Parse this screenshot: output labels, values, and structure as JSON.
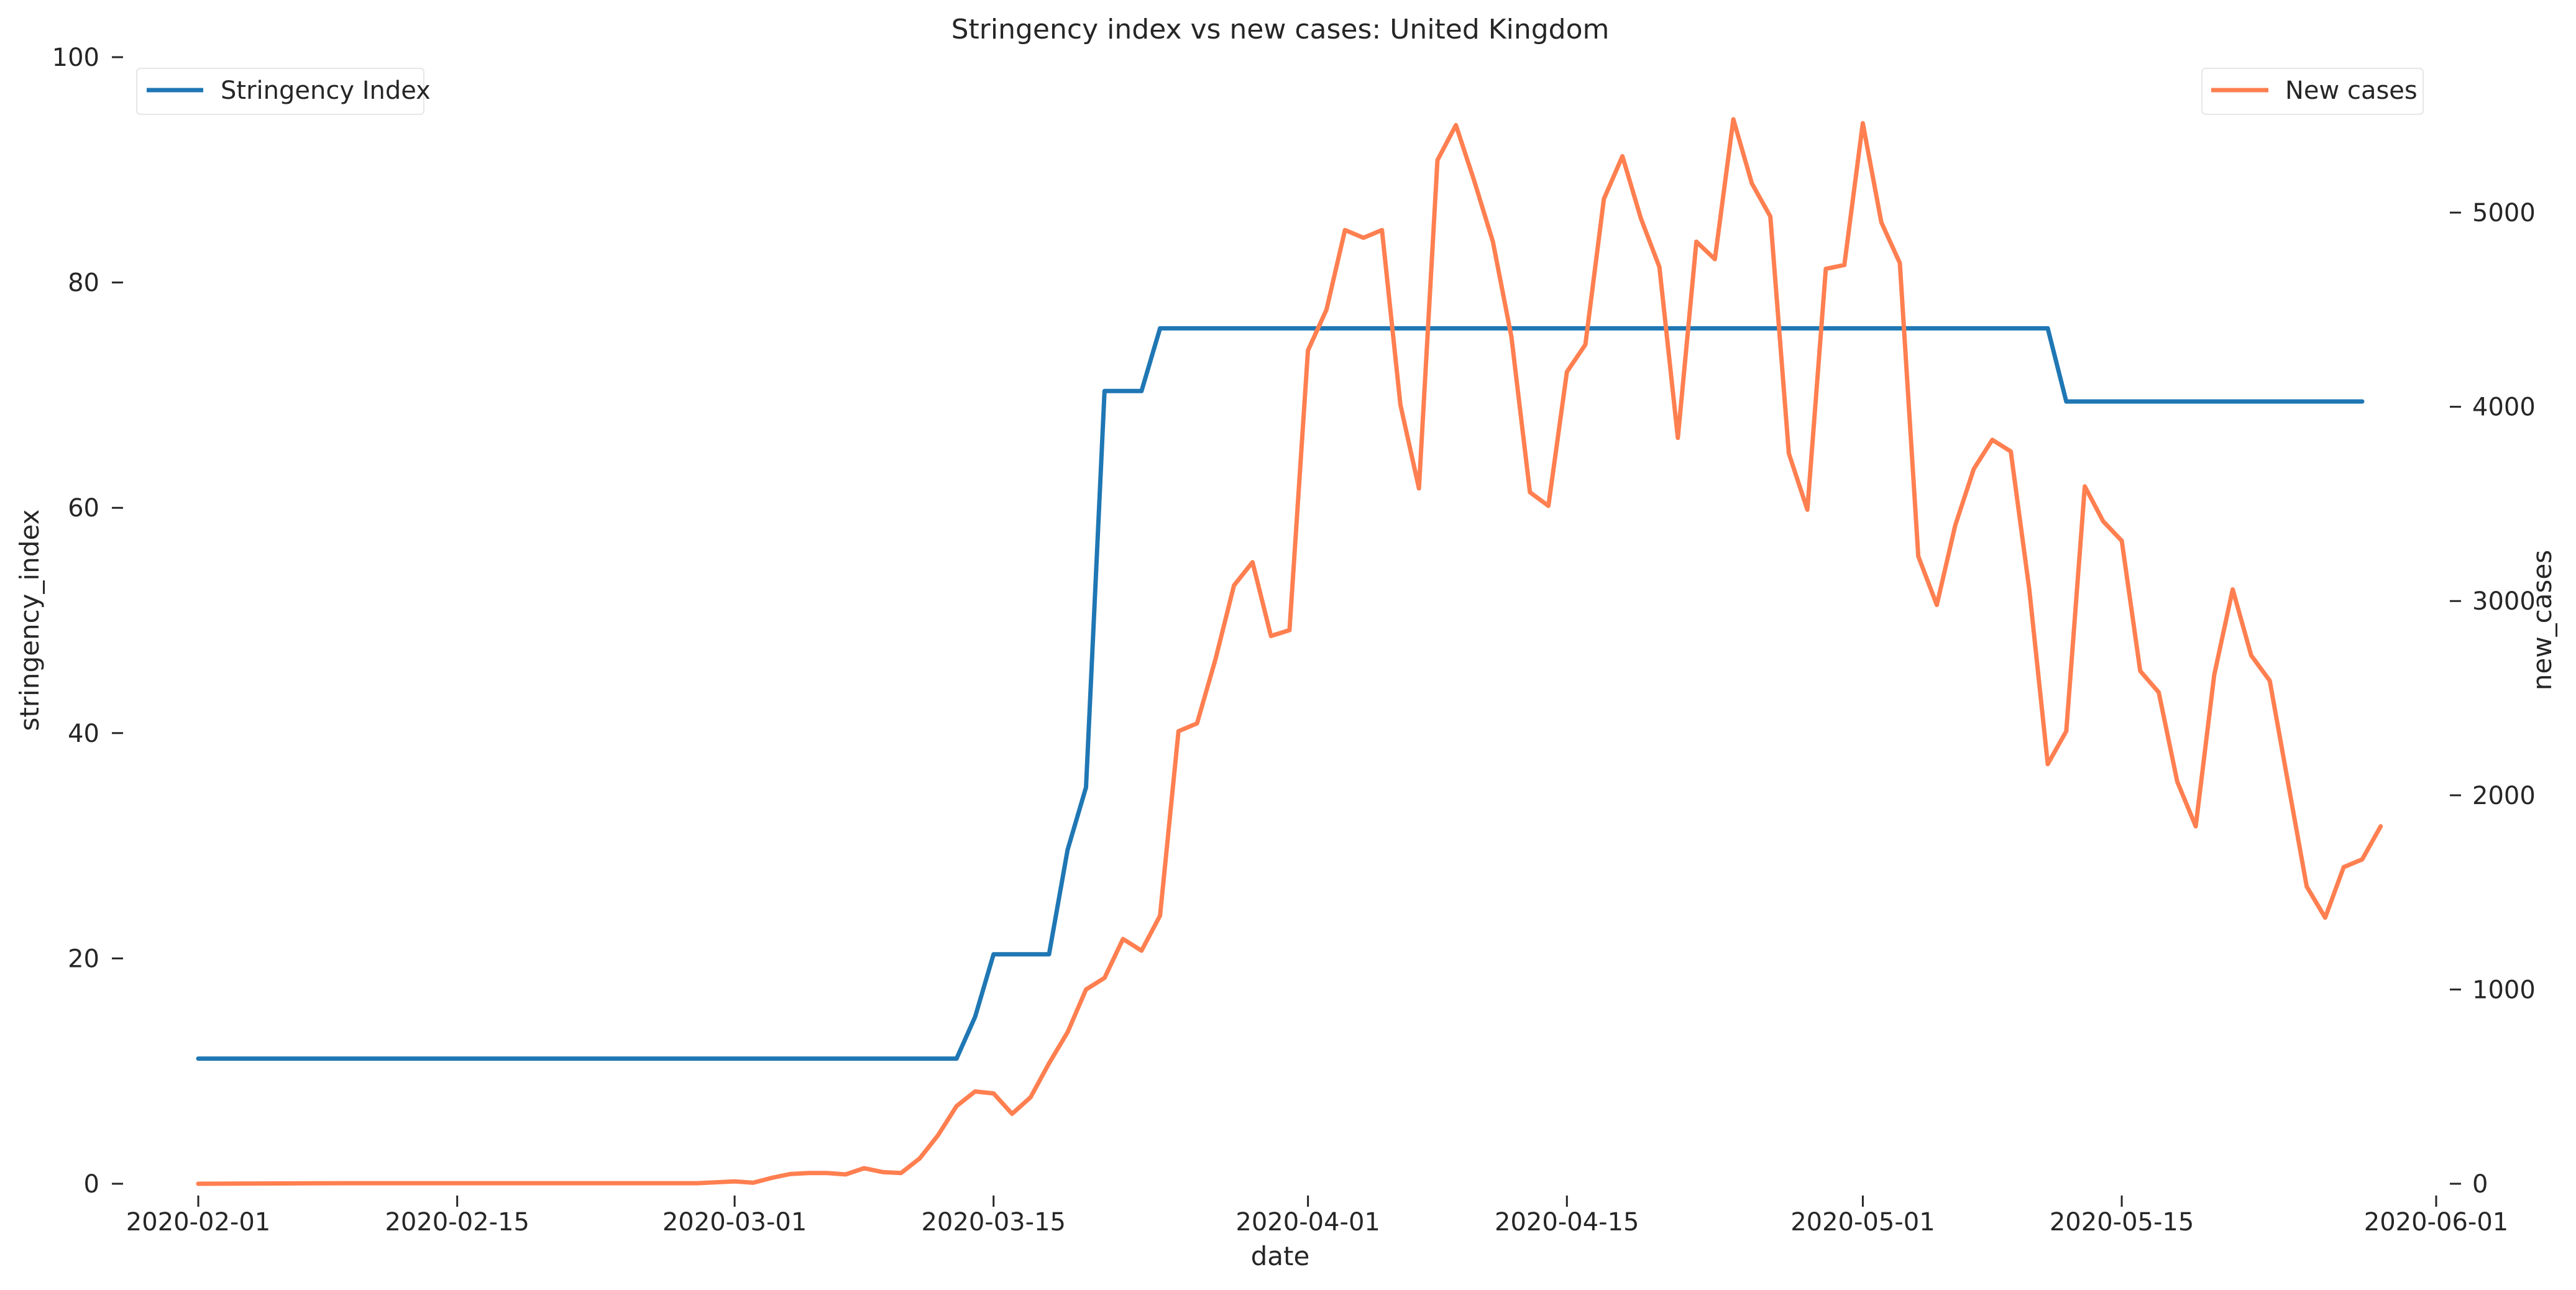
{
  "chart_data": {
    "type": "line",
    "title": "Stringency index vs new cases:  United Kingdom",
    "xlabel": "date",
    "ylabel_left": "stringency_index",
    "ylabel_right": "new_cases",
    "xlim": [
      "2020-01-28",
      "2020-06-01"
    ],
    "ylim_left": [
      0,
      100
    ],
    "ylim_right": [
      0,
      5800
    ],
    "x_ticks": [
      "2020-02-01",
      "2020-02-15",
      "2020-03-01",
      "2020-03-15",
      "2020-04-01",
      "2020-04-15",
      "2020-05-01",
      "2020-05-15",
      "2020-06-01"
    ],
    "y_ticks_left": [
      0,
      20,
      40,
      60,
      80,
      100
    ],
    "y_ticks_right": [
      0,
      1000,
      2000,
      3000,
      4000,
      5000
    ],
    "grid": false,
    "series": [
      {
        "name": "Stringency Index",
        "axis": "left",
        "color": "#1f77b4",
        "legend_position": "upper-left",
        "points": [
          [
            "2020-02-01",
            11.11
          ],
          [
            "2020-03-13",
            11.11
          ],
          [
            "2020-03-14",
            14.81
          ],
          [
            "2020-03-15",
            20.37
          ],
          [
            "2020-03-18",
            20.37
          ],
          [
            "2020-03-19",
            29.63
          ],
          [
            "2020-03-20",
            35.19
          ],
          [
            "2020-03-21",
            70.37
          ],
          [
            "2020-03-23",
            70.37
          ],
          [
            "2020-03-24",
            75.93
          ],
          [
            "2020-05-11",
            75.93
          ],
          [
            "2020-05-12",
            69.44
          ],
          [
            "2020-05-28",
            69.44
          ]
        ]
      },
      {
        "name": "New cases",
        "axis": "right",
        "color": "#ff7f50",
        "legend_position": "upper-right",
        "points": [
          [
            "2020-02-01",
            0
          ],
          [
            "2020-02-09",
            3
          ],
          [
            "2020-02-28",
            3
          ],
          [
            "2020-03-01",
            12
          ],
          [
            "2020-03-02",
            5
          ],
          [
            "2020-03-03",
            30
          ],
          [
            "2020-03-04",
            50
          ],
          [
            "2020-03-05",
            55
          ],
          [
            "2020-03-06",
            55
          ],
          [
            "2020-03-07",
            48
          ],
          [
            "2020-03-08",
            80
          ],
          [
            "2020-03-09",
            60
          ],
          [
            "2020-03-10",
            55
          ],
          [
            "2020-03-11",
            130
          ],
          [
            "2020-03-12",
            250
          ],
          [
            "2020-03-13",
            400
          ],
          [
            "2020-03-14",
            475
          ],
          [
            "2020-03-15",
            465
          ],
          [
            "2020-03-16",
            360
          ],
          [
            "2020-03-17",
            445
          ],
          [
            "2020-03-18",
            620
          ],
          [
            "2020-03-19",
            780
          ],
          [
            "2020-03-20",
            1000
          ],
          [
            "2020-03-21",
            1060
          ],
          [
            "2020-03-22",
            1260
          ],
          [
            "2020-03-23",
            1200
          ],
          [
            "2020-03-24",
            1380
          ],
          [
            "2020-03-25",
            2330
          ],
          [
            "2020-03-26",
            2370
          ],
          [
            "2020-03-27",
            2700
          ],
          [
            "2020-03-28",
            3080
          ],
          [
            "2020-03-29",
            3200
          ],
          [
            "2020-03-30",
            2820
          ],
          [
            "2020-03-31",
            2850
          ],
          [
            "2020-04-01",
            4290
          ],
          [
            "2020-04-02",
            4500
          ],
          [
            "2020-04-03",
            4910
          ],
          [
            "2020-04-04",
            4870
          ],
          [
            "2020-04-05",
            4910
          ],
          [
            "2020-04-06",
            4010
          ],
          [
            "2020-04-07",
            3580
          ],
          [
            "2020-04-08",
            5270
          ],
          [
            "2020-04-09",
            5450
          ],
          [
            "2020-04-10",
            5160
          ],
          [
            "2020-04-11",
            4850
          ],
          [
            "2020-04-12",
            4360
          ],
          [
            "2020-04-13",
            3560
          ],
          [
            "2020-04-14",
            3490
          ],
          [
            "2020-04-15",
            4180
          ],
          [
            "2020-04-16",
            4320
          ],
          [
            "2020-04-17",
            5070
          ],
          [
            "2020-04-18",
            5290
          ],
          [
            "2020-04-19",
            4970
          ],
          [
            "2020-04-20",
            4720
          ],
          [
            "2020-04-21",
            3840
          ],
          [
            "2020-04-22",
            4850
          ],
          [
            "2020-04-23",
            4760
          ],
          [
            "2020-04-24",
            5480
          ],
          [
            "2020-04-25",
            5150
          ],
          [
            "2020-04-26",
            4980
          ],
          [
            "2020-04-27",
            3760
          ],
          [
            "2020-04-28",
            3470
          ],
          [
            "2020-04-29",
            4710
          ],
          [
            "2020-04-30",
            4730
          ],
          [
            "2020-05-01",
            5460
          ],
          [
            "2020-05-02",
            4950
          ],
          [
            "2020-05-03",
            4740
          ],
          [
            "2020-05-04",
            3230
          ],
          [
            "2020-05-05",
            2980
          ],
          [
            "2020-05-06",
            3390
          ],
          [
            "2020-05-07",
            3680
          ],
          [
            "2020-05-08",
            3830
          ],
          [
            "2020-05-09",
            3770
          ],
          [
            "2020-05-10",
            3060
          ],
          [
            "2020-05-11",
            2160
          ],
          [
            "2020-05-12",
            2330
          ],
          [
            "2020-05-13",
            3590
          ],
          [
            "2020-05-14",
            3410
          ],
          [
            "2020-05-15",
            3310
          ],
          [
            "2020-05-16",
            2640
          ],
          [
            "2020-05-17",
            2530
          ],
          [
            "2020-05-18",
            2070
          ],
          [
            "2020-05-19",
            1840
          ],
          [
            "2020-05-20",
            2620
          ],
          [
            "2020-05-21",
            3060
          ],
          [
            "2020-05-22",
            2720
          ],
          [
            "2020-05-23",
            2590
          ],
          [
            "2020-05-24",
            2060
          ],
          [
            "2020-05-25",
            1530
          ],
          [
            "2020-05-26",
            1370
          ],
          [
            "2020-05-27",
            1630
          ],
          [
            "2020-05-28",
            1670
          ],
          [
            "2020-05-29",
            1840
          ]
        ]
      }
    ]
  }
}
